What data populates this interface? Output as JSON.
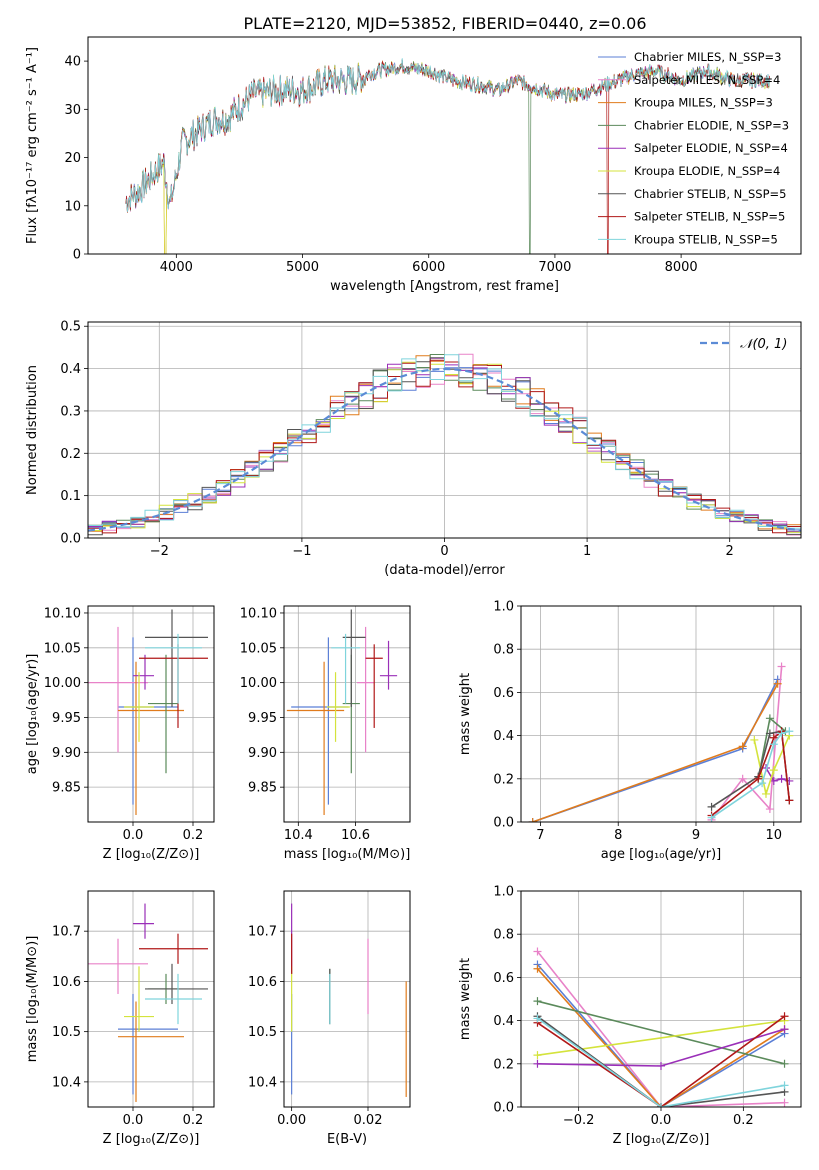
{
  "figure": {
    "title": "PLATE=2120, MJD=53852, FIBERID=0440, z=0.06"
  },
  "palette": [
    "#5b7fd6",
    "#e882c8",
    "#e07b1c",
    "#5b8a5b",
    "#9a2fb8",
    "#d4e33c",
    "#555555",
    "#b01818",
    "#7fd4dc"
  ],
  "chart_data": [
    {
      "id": "spectrum",
      "type": "line",
      "xlabel": "wavelength [Angstrom, rest frame]",
      "ylabel": "Flux [fλ10⁻¹⁷ erg cm⁻² s⁻¹ A⁻¹]",
      "xlim": [
        3300,
        8950
      ],
      "ylim": [
        0,
        45
      ],
      "xticks": [
        4000,
        5000,
        6000,
        7000,
        8000
      ],
      "yticks": [
        0,
        10,
        20,
        30,
        40
      ],
      "legend_position": "top-right",
      "profile_x": [
        3600,
        3700,
        3800,
        3900,
        3950,
        4050,
        4200,
        4300,
        4400,
        4600,
        4860,
        5000,
        5200,
        5400,
        5600,
        5800,
        6000,
        6200,
        6400,
        6560,
        6700,
        7000,
        7200,
        7400,
        7600,
        7800,
        8000,
        8200,
        8400,
        8600,
        8700
      ],
      "profile_y": [
        11,
        13,
        16,
        19,
        10,
        23,
        26,
        28,
        28,
        33,
        34,
        34,
        36,
        36,
        38,
        39,
        38,
        36,
        35,
        34,
        36,
        33,
        33,
        35,
        37,
        38,
        36,
        38,
        36,
        36,
        36
      ],
      "series": [
        {
          "name": "Chabrier MILES, N_SSP=3"
        },
        {
          "name": "Salpeter MILES, N_SSP=4"
        },
        {
          "name": "Kroupa MILES, N_SSP=3"
        },
        {
          "name": "Chabrier ELODIE, N_SSP=3"
        },
        {
          "name": "Salpeter ELODIE, N_SSP=4"
        },
        {
          "name": "Kroupa ELODIE, N_SSP=4"
        },
        {
          "name": "Chabrier STELIB, N_SSP=5"
        },
        {
          "name": "Salpeter STELIB, N_SSP=5"
        },
        {
          "name": "Kroupa STELIB, N_SSP=5"
        }
      ]
    },
    {
      "id": "residuals",
      "type": "histogram",
      "xlabel": "(data-model)/error",
      "ylabel": "Normed distribution",
      "xlim": [
        -2.5,
        2.5
      ],
      "ylim": [
        0,
        0.51
      ],
      "xticks": [
        -2,
        -1,
        0,
        1,
        2
      ],
      "yticks": [
        0.0,
        0.1,
        0.2,
        0.3,
        0.4,
        0.5
      ],
      "legend_position": "top-right",
      "reference_name": "𝒩(0, 1)",
      "bin_width": 0.1,
      "grid": true
    },
    {
      "id": "age_vs_z",
      "type": "errorbar",
      "xlabel": "Z [log₁₀(Z/Z⊙)]",
      "ylabel": "age  [log₁₀(age/yr)]",
      "xlim": [
        -0.15,
        0.27
      ],
      "ylim": [
        9.8,
        10.11
      ],
      "xticks": [
        0.0,
        0.2
      ],
      "yticks": [
        9.85,
        9.9,
        9.95,
        10.0,
        10.05,
        10.1
      ],
      "grid": true,
      "points": [
        {
          "x": 0.0,
          "y": 9.965,
          "xerr": [
            0.05,
            0.15
          ],
          "yerr": [
            0.14,
            0.1
          ]
        },
        {
          "x": -0.05,
          "y": 10.0,
          "xerr": [
            0.1,
            0.1
          ],
          "yerr": [
            0.1,
            0.08
          ]
        },
        {
          "x": 0.01,
          "y": 9.96,
          "xerr": [
            0.06,
            0.16
          ],
          "yerr": [
            0.15,
            0.07
          ]
        },
        {
          "x": 0.11,
          "y": 9.97,
          "xerr": [
            0.06,
            0.04
          ],
          "yerr": [
            0.1,
            0.07
          ]
        },
        {
          "x": 0.04,
          "y": 10.01,
          "xerr": [
            0.04,
            0.03
          ],
          "yerr": [
            0.02,
            0.03
          ]
        },
        {
          "x": 0.02,
          "y": 9.965,
          "xerr": [
            0.05,
            0.05
          ],
          "yerr": [
            0.05,
            0.05
          ]
        },
        {
          "x": 0.13,
          "y": 10.065,
          "xerr": [
            0.09,
            0.12
          ],
          "yerr": [
            0.1,
            0.04
          ]
        },
        {
          "x": 0.15,
          "y": 10.035,
          "xerr": [
            0.13,
            0.1
          ],
          "yerr": [
            0.1,
            0.02
          ]
        },
        {
          "x": 0.15,
          "y": 10.05,
          "xerr": [
            0.11,
            0.08
          ],
          "yerr": [
            0.08,
            0.02
          ]
        }
      ]
    },
    {
      "id": "age_vs_mass",
      "type": "errorbar",
      "xlabel": "mass [log₁₀(M/M⊙)]",
      "ylabel": "",
      "xlim": [
        10.35,
        10.79
      ],
      "ylim": [
        9.8,
        10.11
      ],
      "xticks": [
        10.4,
        10.6
      ],
      "yticks": [
        9.85,
        9.9,
        9.95,
        10.0,
        10.05,
        10.1
      ],
      "grid": true,
      "points": [
        {
          "x": 10.505,
          "y": 9.965,
          "xerr": [
            0.13,
            0.07
          ],
          "yerr": [
            0.14,
            0.1
          ]
        },
        {
          "x": 10.635,
          "y": 10.0,
          "xerr": [
            0.03,
            0.03
          ],
          "yerr": [
            0.1,
            0.08
          ]
        },
        {
          "x": 10.49,
          "y": 9.96,
          "xerr": [
            0.13,
            0.07
          ],
          "yerr": [
            0.15,
            0.07
          ]
        },
        {
          "x": 10.585,
          "y": 9.97,
          "xerr": [
            0.03,
            0.03
          ],
          "yerr": [
            0.1,
            0.07
          ]
        },
        {
          "x": 10.715,
          "y": 10.01,
          "xerr": [
            0.03,
            0.03
          ],
          "yerr": [
            0.02,
            0.05
          ]
        },
        {
          "x": 10.53,
          "y": 9.965,
          "xerr": [
            0.03,
            0.05
          ],
          "yerr": [
            0.05,
            0.05
          ]
        },
        {
          "x": 10.585,
          "y": 10.065,
          "xerr": [
            0.03,
            0.05
          ],
          "yerr": [
            0.1,
            0.04
          ]
        },
        {
          "x": 10.665,
          "y": 10.035,
          "xerr": [
            0.03,
            0.03
          ],
          "yerr": [
            0.1,
            0.02
          ]
        },
        {
          "x": 10.565,
          "y": 10.05,
          "xerr": [
            0.05,
            0.05
          ],
          "yerr": [
            0.08,
            0.02
          ]
        }
      ]
    },
    {
      "id": "mass_weight_vs_age",
      "type": "line",
      "xlabel": "age  [log₁₀(age/yr)]",
      "ylabel": "mass weight",
      "xlim": [
        6.75,
        10.35
      ],
      "ylim": [
        0,
        1
      ],
      "xticks": [
        7,
        8,
        9,
        10
      ],
      "yticks": [
        0.0,
        0.2,
        0.4,
        0.6,
        0.8,
        1.0
      ],
      "grid": true,
      "series": [
        {
          "x": [
            6.9,
            9.6,
            10.05
          ],
          "y": [
            0.0,
            0.34,
            0.66
          ]
        },
        {
          "x": [
            9.2,
            9.6,
            9.95,
            10.1
          ],
          "y": [
            0.01,
            0.2,
            0.06,
            0.72
          ]
        },
        {
          "x": [
            6.9,
            9.6,
            10.05
          ],
          "y": [
            0.0,
            0.35,
            0.64
          ]
        },
        {
          "x": [
            9.8,
            9.95,
            10.15
          ],
          "y": [
            0.2,
            0.48,
            0.42
          ]
        },
        {
          "x": [
            9.9,
            10.0,
            10.1,
            10.2
          ],
          "y": [
            0.25,
            0.19,
            0.2,
            0.19
          ]
        },
        {
          "x": [
            9.75,
            9.9,
            10.0,
            10.2
          ],
          "y": [
            0.38,
            0.13,
            0.24,
            0.4
          ]
        },
        {
          "x": [
            9.2,
            9.8,
            9.95,
            10.1,
            10.2
          ],
          "y": [
            0.07,
            0.21,
            0.41,
            0.42,
            0.1
          ]
        },
        {
          "x": [
            9.2,
            9.8,
            10.0,
            10.1,
            10.2
          ],
          "y": [
            0.03,
            0.2,
            0.39,
            0.42,
            0.1
          ]
        },
        {
          "x": [
            9.2,
            9.85,
            10.0,
            10.1,
            10.2
          ],
          "y": [
            0.02,
            0.18,
            0.36,
            0.41,
            0.42
          ]
        }
      ]
    },
    {
      "id": "mass_vs_z",
      "type": "errorbar",
      "xlabel": "Z [log₁₀(Z/Z⊙)]",
      "ylabel": "mass [log₁₀(M/M⊙)]",
      "xlim": [
        -0.15,
        0.27
      ],
      "ylim": [
        10.35,
        10.78
      ],
      "xticks": [
        0.0,
        0.2
      ],
      "yticks": [
        10.4,
        10.5,
        10.6,
        10.7
      ],
      "grid": true,
      "points": [
        {
          "x": 0.0,
          "y": 10.505,
          "xerr": [
            0.05,
            0.15
          ],
          "yerr": [
            0.13,
            0.07
          ]
        },
        {
          "x": -0.05,
          "y": 10.635,
          "xerr": [
            0.1,
            0.1
          ],
          "yerr": [
            0.06,
            0.05
          ]
        },
        {
          "x": 0.01,
          "y": 10.49,
          "xerr": [
            0.06,
            0.16
          ],
          "yerr": [
            0.13,
            0.07
          ]
        },
        {
          "x": 0.11,
          "y": 10.585,
          "xerr": [
            0.06,
            0.04
          ],
          "yerr": [
            0.03,
            0.03
          ]
        },
        {
          "x": 0.04,
          "y": 10.715,
          "xerr": [
            0.04,
            0.03
          ],
          "yerr": [
            0.03,
            0.04
          ]
        },
        {
          "x": 0.02,
          "y": 10.53,
          "xerr": [
            0.05,
            0.05
          ],
          "yerr": [
            0.03,
            0.1
          ]
        },
        {
          "x": 0.13,
          "y": 10.585,
          "xerr": [
            0.09,
            0.12
          ],
          "yerr": [
            0.03,
            0.05
          ]
        },
        {
          "x": 0.15,
          "y": 10.665,
          "xerr": [
            0.13,
            0.1
          ],
          "yerr": [
            0.03,
            0.03
          ]
        },
        {
          "x": 0.15,
          "y": 10.565,
          "xerr": [
            0.11,
            0.08
          ],
          "yerr": [
            0.05,
            0.05
          ]
        }
      ]
    },
    {
      "id": "mass_vs_ebv",
      "type": "errorbar",
      "xlabel": "E(B-V)",
      "ylabel": "",
      "xlim": [
        -0.002,
        0.031
      ],
      "ylim": [
        10.35,
        10.78
      ],
      "xticks": [
        0.0,
        0.02
      ],
      "yticks": [
        10.4,
        10.5,
        10.6,
        10.7
      ],
      "grid": true,
      "points": [
        {
          "x": 0.0,
          "y": 10.505,
          "xerr": [
            0,
            0
          ],
          "yerr": [
            0.13,
            0.07
          ]
        },
        {
          "x": 0.02,
          "y": 10.635,
          "xerr": [
            0,
            0
          ],
          "yerr": [
            0.1,
            0.05
          ]
        },
        {
          "x": 0.03,
          "y": 10.49,
          "xerr": [
            0,
            0
          ],
          "yerr": [
            0.12,
            0.11
          ]
        },
        {
          "x": 0.01,
          "y": 10.585,
          "xerr": [
            0,
            0
          ],
          "yerr": [
            0.07,
            0.04
          ]
        },
        {
          "x": 0.0,
          "y": 10.715,
          "xerr": [
            0,
            0
          ],
          "yerr": [
            0.1,
            0.04
          ]
        },
        {
          "x": 0.0,
          "y": 10.53,
          "xerr": [
            0,
            0
          ],
          "yerr": [
            0.03,
            0.1
          ]
        },
        {
          "x": 0.01,
          "y": 10.585,
          "xerr": [
            0,
            0
          ],
          "yerr": [
            0.07,
            0.04
          ]
        },
        {
          "x": 0.0,
          "y": 10.665,
          "xerr": [
            0,
            0
          ],
          "yerr": [
            0.05,
            0.03
          ]
        },
        {
          "x": 0.01,
          "y": 10.565,
          "xerr": [
            0,
            0
          ],
          "yerr": [
            0.05,
            0.05
          ]
        }
      ]
    },
    {
      "id": "mass_weight_vs_z",
      "type": "line",
      "xlabel": "Z [log₁₀(Z/Z⊙)]",
      "ylabel": "mass weight",
      "xlim": [
        -0.34,
        0.34
      ],
      "ylim": [
        0,
        1
      ],
      "xticks": [
        -0.2,
        0.0,
        0.2
      ],
      "yticks": [
        0.0,
        0.2,
        0.4,
        0.6,
        0.8,
        1.0
      ],
      "grid": true,
      "series": [
        {
          "x": [
            -0.3,
            0.0,
            0.3
          ],
          "y": [
            0.66,
            0.0,
            0.34
          ]
        },
        {
          "x": [
            -0.3,
            0.0,
            0.3
          ],
          "y": [
            0.72,
            0.0,
            0.02
          ]
        },
        {
          "x": [
            -0.3,
            0.0,
            0.3
          ],
          "y": [
            0.64,
            0.0,
            0.36
          ]
        },
        {
          "x": [
            -0.3,
            0.3
          ],
          "y": [
            0.49,
            0.2
          ]
        },
        {
          "x": [
            -0.3,
            0.0,
            0.3
          ],
          "y": [
            0.2,
            0.19,
            0.36
          ]
        },
        {
          "x": [
            -0.3,
            0.3
          ],
          "y": [
            0.24,
            0.4
          ]
        },
        {
          "x": [
            -0.3,
            0.0,
            0.3
          ],
          "y": [
            0.42,
            0.0,
            0.07
          ]
        },
        {
          "x": [
            -0.3,
            0.0,
            0.3
          ],
          "y": [
            0.39,
            0.0,
            0.42
          ]
        },
        {
          "x": [
            -0.3,
            0.0,
            0.3
          ],
          "y": [
            0.41,
            0.0,
            0.1
          ]
        }
      ]
    }
  ]
}
